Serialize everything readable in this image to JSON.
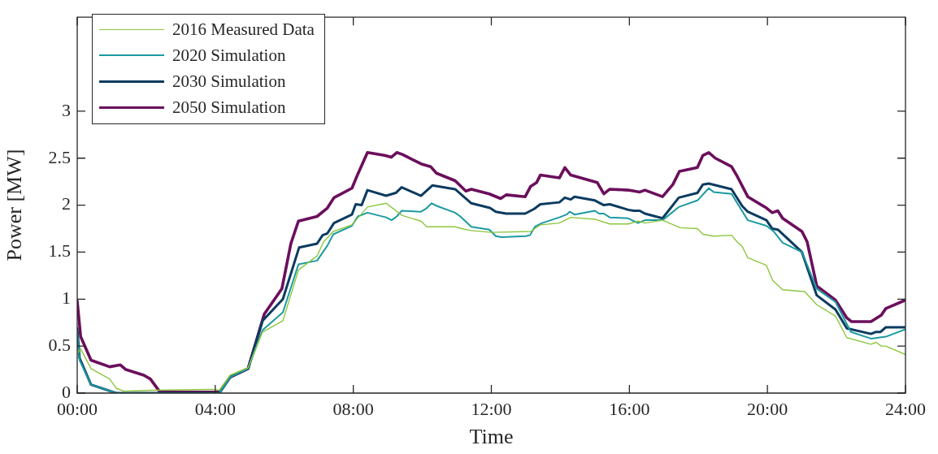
{
  "chart_data": {
    "type": "line",
    "xlabel": "Time",
    "ylabel": "Power [MW]",
    "xlim": [
      0,
      24
    ],
    "xticks": [
      {
        "value": 0,
        "label": "00:00"
      },
      {
        "value": 4,
        "label": "04:00"
      },
      {
        "value": 8,
        "label": "08:00"
      },
      {
        "value": 12,
        "label": "12:00"
      },
      {
        "value": 16,
        "label": "16:00"
      },
      {
        "value": 20,
        "label": "20:00"
      },
      {
        "value": 24,
        "label": "24:00"
      }
    ],
    "ylim": [
      0,
      4
    ],
    "yticks": [
      0,
      0.5,
      1,
      1.5,
      2,
      2.5,
      3
    ],
    "grid": false,
    "legend": "top left",
    "marker": "none",
    "line_style": "solid",
    "series": [
      {
        "name": "2016 Measured Data",
        "color": "#8dc63f",
        "x": [
          0,
          0.1,
          0.4,
          0.94,
          1.13,
          1.37,
          2.17,
          3.96,
          4.12,
          4.43,
          4.95,
          5.37,
          5.96,
          6.41,
          6.95,
          7.14,
          7.42,
          7.96,
          8.41,
          8.95,
          9.42,
          9.96,
          10.13,
          10.95,
          11.14,
          11.42,
          12.01,
          13.14,
          13.42,
          13.97,
          14.3,
          15,
          15.43,
          15.97,
          16.25,
          16.45,
          16.96,
          17.47,
          17.97,
          18.13,
          18.44,
          18.96,
          19.12,
          19.27,
          19.43,
          19.97,
          20.15,
          20.44,
          21.08,
          21.43,
          21.97,
          22.3,
          23,
          23.15,
          23.3,
          23.43,
          24
        ],
        "values": [
          0.42,
          0.47,
          0.26,
          0.15,
          0.05,
          0.02,
          0.03,
          0.04,
          0.03,
          0.19,
          0.27,
          0.65,
          0.77,
          1.31,
          1.46,
          1.61,
          1.72,
          1.79,
          1.98,
          2.02,
          1.89,
          1.83,
          1.77,
          1.77,
          1.75,
          1.73,
          1.71,
          1.72,
          1.79,
          1.81,
          1.87,
          1.85,
          1.8,
          1.8,
          1.83,
          1.81,
          1.84,
          1.76,
          1.75,
          1.69,
          1.67,
          1.68,
          1.61,
          1.56,
          1.44,
          1.36,
          1.2,
          1.1,
          1.08,
          0.94,
          0.82,
          0.59,
          0.52,
          0.54,
          0.5,
          0.5,
          0.41
        ]
      },
      {
        "name": "2020 Simulation",
        "color": "#1b9aa0",
        "x": [
          0,
          0.07,
          0.4,
          1.13,
          4.12,
          4.43,
          4.95,
          5.37,
          5.96,
          6.41,
          6.95,
          7.25,
          7.42,
          7.96,
          8.13,
          8.41,
          8.95,
          9.11,
          9.26,
          9.4,
          9.96,
          10.1,
          10.27,
          10.43,
          10.95,
          11.1,
          11.42,
          11.94,
          12.13,
          12.29,
          12.99,
          13.12,
          13.26,
          13.47,
          13.97,
          14.18,
          14.27,
          14.41,
          15,
          15.12,
          15.26,
          15.43,
          15.97,
          16.13,
          16.25,
          16.45,
          16.96,
          17.43,
          17.97,
          18.3,
          18.44,
          18.96,
          19.43,
          19.97,
          20.18,
          20.44,
          21,
          21.43,
          21.97,
          22.42,
          23,
          23.43,
          24
        ],
        "values": [
          0.66,
          0.35,
          0.09,
          0,
          0,
          0.17,
          0.26,
          0.67,
          0.86,
          1.37,
          1.41,
          1.57,
          1.69,
          1.78,
          1.88,
          1.92,
          1.87,
          1.84,
          1.88,
          1.94,
          1.93,
          1.96,
          2.02,
          1.99,
          1.92,
          1.88,
          1.77,
          1.74,
          1.67,
          1.66,
          1.67,
          1.68,
          1.77,
          1.81,
          1.87,
          1.9,
          1.93,
          1.9,
          1.94,
          1.91,
          1.91,
          1.87,
          1.86,
          1.83,
          1.81,
          1.84,
          1.84,
          1.98,
          2.05,
          2.18,
          2.14,
          2.12,
          1.84,
          1.78,
          1.72,
          1.6,
          1.5,
          1.11,
          0.97,
          0.65,
          0.58,
          0.6,
          0.68
        ]
      },
      {
        "name": "2030 Simulation",
        "color": "#0b3b60",
        "x": [
          0,
          0.07,
          0.4,
          1.13,
          4.12,
          4.43,
          4.95,
          5.37,
          5.96,
          6.43,
          6.95,
          7.11,
          7.25,
          7.44,
          7.96,
          8.07,
          8.24,
          8.41,
          8.95,
          9.23,
          9.4,
          9.96,
          10.29,
          10.95,
          11.42,
          11.96,
          12.13,
          12.43,
          12.98,
          13.24,
          13.42,
          13.97,
          14.13,
          14.3,
          14.41,
          15,
          15.26,
          15.43,
          15.97,
          16.13,
          16.3,
          16.45,
          16.96,
          17.43,
          17.97,
          18.13,
          18.3,
          18.96,
          19.27,
          19.43,
          19.97,
          20.14,
          20.3,
          21,
          21.43,
          21.97,
          22.3,
          23,
          23.13,
          23.27,
          23.43,
          24
        ],
        "values": [
          0.69,
          0.37,
          0.09,
          0,
          0,
          0.17,
          0.26,
          0.77,
          1,
          1.55,
          1.59,
          1.68,
          1.7,
          1.81,
          1.9,
          2.01,
          2,
          2.16,
          2.1,
          2.13,
          2.19,
          2.1,
          2.21,
          2.17,
          2.02,
          1.97,
          1.93,
          1.91,
          1.91,
          1.96,
          2.01,
          2.03,
          2.08,
          2.06,
          2.09,
          2.05,
          2,
          2.01,
          1.95,
          1.94,
          1.94,
          1.91,
          1.86,
          2.08,
          2.13,
          2.22,
          2.23,
          2.17,
          1.99,
          1.93,
          1.84,
          1.75,
          1.74,
          1.5,
          1.04,
          0.89,
          0.69,
          0.63,
          0.65,
          0.65,
          0.7,
          0.7
        ]
      },
      {
        "name": "2050 Simulation",
        "color": "#6b0f5c",
        "x": [
          0,
          0.1,
          0.4,
          0.94,
          1.25,
          1.41,
          1.93,
          2.12,
          2.4,
          4.12,
          4.43,
          4.95,
          5.42,
          5.93,
          6.19,
          6.41,
          6.95,
          7.25,
          7.44,
          7.96,
          8.13,
          8.41,
          8.9,
          9.1,
          9.26,
          9.42,
          9.96,
          10.24,
          10.41,
          10.95,
          11.26,
          11.42,
          11.94,
          12.27,
          12.43,
          12.98,
          13.14,
          13.31,
          13.42,
          13.97,
          14.13,
          14.3,
          15.07,
          15.26,
          15.43,
          15.97,
          16.3,
          16.45,
          16.96,
          17.26,
          17.45,
          17.97,
          18.13,
          18.3,
          18.49,
          18.96,
          19.12,
          19.43,
          19.97,
          20.14,
          20.3,
          20.44,
          21,
          21.15,
          21.43,
          21.97,
          22.3,
          22.44,
          23,
          23.3,
          23.43,
          24
        ],
        "values": [
          0.98,
          0.6,
          0.35,
          0.28,
          0.3,
          0.25,
          0.19,
          0.15,
          0.01,
          0.01,
          0.17,
          0.26,
          0.84,
          1.11,
          1.59,
          1.83,
          1.88,
          1.97,
          2.08,
          2.18,
          2.33,
          2.56,
          2.53,
          2.51,
          2.56,
          2.54,
          2.44,
          2.41,
          2.34,
          2.26,
          2.15,
          2.17,
          2.12,
          2.07,
          2.11,
          2.09,
          2.2,
          2.24,
          2.32,
          2.29,
          2.4,
          2.32,
          2.24,
          2.12,
          2.17,
          2.16,
          2.14,
          2.16,
          2.09,
          2.22,
          2.36,
          2.4,
          2.53,
          2.56,
          2.5,
          2.41,
          2.31,
          2.09,
          1.97,
          1.92,
          1.94,
          1.86,
          1.72,
          1.61,
          1.14,
          0.99,
          0.8,
          0.76,
          0.76,
          0.83,
          0.9,
          0.99
        ]
      }
    ]
  }
}
